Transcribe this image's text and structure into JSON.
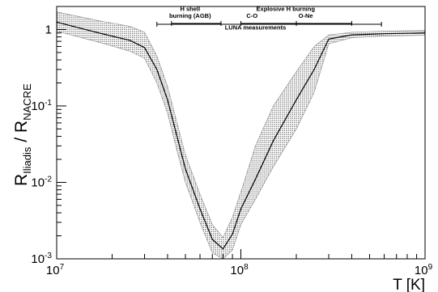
{
  "chart_data": {
    "type": "area",
    "xscale": "log",
    "yscale": "log",
    "xlim": [
      10000000,
      1000000000
    ],
    "ylim": [
      0.001,
      2
    ],
    "xlabel": "T [K]",
    "ylabel_main": "R",
    "ylabel_sub1": "Iliadis",
    "ylabel_sep": " / ",
    "ylabel_main2": "R",
    "ylabel_sub2": "NACRE",
    "x_ticks": [
      {
        "value": 10000000,
        "mant": "10",
        "exp": "7"
      },
      {
        "value": 100000000,
        "mant": "10",
        "exp": "8"
      },
      {
        "value": 1000000000,
        "mant": "10",
        "exp": "9"
      }
    ],
    "y_ticks": [
      {
        "value": 0.001,
        "mant": "10",
        "exp": "-3"
      },
      {
        "value": 0.01,
        "mant": "10",
        "exp": "-2"
      },
      {
        "value": 0.1,
        "mant": "10",
        "exp": "-1"
      },
      {
        "value": 1,
        "mant": "1",
        "exp": ""
      }
    ],
    "series": [
      {
        "x": [
          10000000,
          17000000,
          25000000,
          30000000,
          35000000,
          40000000,
          45000000,
          50000000,
          60000000,
          70000000,
          80000000,
          90000000,
          100000000,
          120000000,
          150000000,
          200000000,
          250000000,
          300000000,
          400000000,
          600000000,
          1000000000
        ],
        "y": [
          1.25,
          0.9,
          0.72,
          0.58,
          0.3,
          0.12,
          0.04,
          0.015,
          0.0045,
          0.0018,
          0.00135,
          0.0021,
          0.0045,
          0.011,
          0.035,
          0.12,
          0.3,
          0.75,
          0.85,
          0.88,
          0.9
        ],
        "upper": [
          1.7,
          1.3,
          1.1,
          0.92,
          0.45,
          0.18,
          0.06,
          0.023,
          0.007,
          0.0028,
          0.0019,
          0.0035,
          0.0075,
          0.03,
          0.1,
          0.28,
          0.6,
          0.85,
          0.92,
          0.95,
          0.97
        ],
        "lower": [
          0.95,
          0.68,
          0.52,
          0.42,
          0.2,
          0.08,
          0.026,
          0.01,
          0.003,
          0.0012,
          0.001,
          0.0013,
          0.0028,
          0.006,
          0.016,
          0.05,
          0.15,
          0.65,
          0.78,
          0.82,
          0.84
        ]
      }
    ],
    "annotations": [
      {
        "label": "H shell",
        "x": 53000000,
        "y": 1.75,
        "range": null
      },
      {
        "label": "burning (AGB)",
        "x": 53000000,
        "y": 1.42,
        "range": [
          42000000,
          78000000
        ],
        "range_y": 1.2
      },
      {
        "label": "Explosive H burning",
        "x": 175000000,
        "y": 1.75,
        "range": null
      },
      {
        "label": "C-O",
        "x": 115000000,
        "y": 1.42,
        "range": [
          100000000,
          200000000
        ],
        "range_y": 1.2
      },
      {
        "label": "O-Ne",
        "x": 225000000,
        "y": 1.42,
        "range": [
          200000000,
          400000000
        ],
        "range_y": 1.2
      },
      {
        "label": "LUNA measurements",
        "x": 120000000,
        "y": 1.0,
        "range": [
          35000000,
          580000000
        ],
        "range_y": 1.17
      }
    ],
    "grid": false,
    "colors": {
      "band": "#888888",
      "line": "#000000"
    }
  }
}
